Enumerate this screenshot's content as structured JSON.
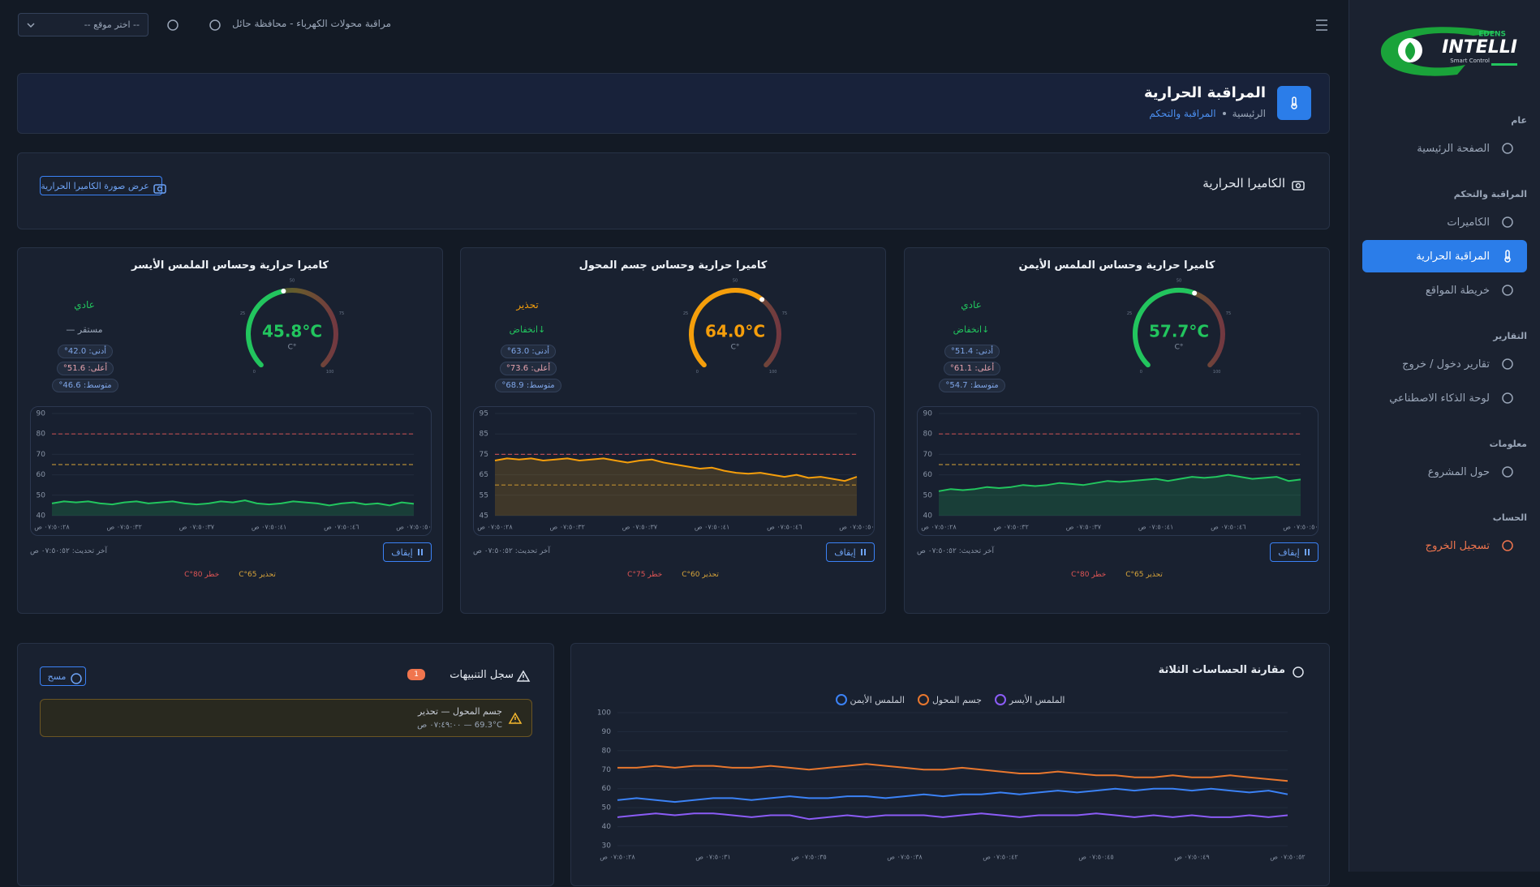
{
  "sidebar": {
    "logo": {
      "brand": "INTELLI",
      "sub": "EDENS",
      "tagline": "Smart Control"
    },
    "sections": [
      {
        "title": "عام",
        "items": [
          {
            "label": "الصفحة الرئيسية"
          }
        ]
      },
      {
        "title": "المراقبة والتحكم",
        "items": [
          {
            "label": "الكاميرات"
          },
          {
            "label": "المراقبة الحرارية",
            "active": true
          },
          {
            "label": "خريطة المواقع"
          }
        ]
      },
      {
        "title": "التقارير",
        "items": [
          {
            "label": "تقارير دخول / خروج"
          },
          {
            "label": "لوحة الذكاء الاصطناعي"
          }
        ]
      },
      {
        "title": "معلومات",
        "items": [
          {
            "label": "حول المشروع"
          }
        ]
      },
      {
        "title": "الحساب",
        "items": [
          {
            "label": "تسجيل الخروج",
            "danger": true
          }
        ]
      }
    ]
  },
  "topbar": {
    "title": "مراقبة محولات الكهرباء - محافظة حائل",
    "location_placeholder": "-- اختر موقع --"
  },
  "page_header": {
    "title": "المراقبة الحرارية",
    "breadcrumb": [
      "الرئيسية",
      "المراقبة والتحكم"
    ]
  },
  "camera": {
    "title": "الكاميرا الحرارية",
    "button": "عرض صورة الكاميرا الحرارية"
  },
  "sensors": [
    {
      "title": "كاميرا حرارية وحساس الملمس الأيمن",
      "status": "عادي",
      "status_color": "#22c55e",
      "trend": "↓انخفاض",
      "stats": [
        "أدنى: 51.4°",
        "أعلى: 61.1°",
        "متوسط: 54.7°"
      ],
      "gauge": {
        "type": "gauge",
        "lim": [
          0,
          100
        ],
        "ticks": [
          0,
          25,
          50,
          75,
          100
        ],
        "value": 57.7,
        "label": "57.7°C",
        "unit": "C°",
        "color": "#22c55e"
      },
      "chart_data": {
        "type": "line",
        "ylim": [
          40,
          90
        ],
        "yticks": [
          40,
          50,
          60,
          70,
          80,
          90
        ],
        "grid": true,
        "categories": [
          "٠٧:٥٠:٢٨ ص",
          null,
          null,
          null,
          null,
          null,
          "٠٧:٥٠:٣٢ ص",
          null,
          null,
          null,
          null,
          null,
          "٠٧:٥٠:٣٧ ص",
          null,
          null,
          null,
          null,
          null,
          "٠٧:٥٠:٤١ ص",
          null,
          null,
          null,
          null,
          null,
          "٠٧:٥٠:٤٦ ص",
          null,
          null,
          null,
          null,
          null,
          "٠٧:٥٠:٥٠ ص"
        ],
        "series": [
          {
            "color": "#22c55e",
            "values": [
              52,
              53,
              52.5,
              53,
              54,
              53.5,
              54,
              55,
              54.5,
              55,
              56,
              55.5,
              55,
              56,
              57,
              56.5,
              57,
              57.5,
              58,
              57,
              58,
              59,
              58.5,
              59,
              60,
              59,
              58,
              58.5,
              59,
              57,
              57.7
            ]
          }
        ],
        "thresholds": [
          {
            "value": 65,
            "label": "تحذير 65°C",
            "color": "#d9a53a"
          },
          {
            "value": 80,
            "label": "خطر 80°C",
            "color": "#e05555"
          }
        ]
      },
      "last_update": "آخر تحديث: ٠٧:٥٠:٥٢ ص",
      "stop_button": "إيقاف"
    },
    {
      "title": "كاميرا حرارية وحساس جسم المحول",
      "status": "تحذير",
      "status_color": "#f59e0b",
      "trend": "↓انخفاض",
      "stats": [
        "أدنى: 63.0°",
        "أعلى: 73.6°",
        "متوسط: 68.9°"
      ],
      "gauge": {
        "type": "gauge",
        "lim": [
          0,
          100
        ],
        "ticks": [
          0,
          25,
          50,
          75,
          100
        ],
        "value": 64.0,
        "label": "64.0°C",
        "unit": "C°",
        "color": "#f59e0b"
      },
      "chart_data": {
        "type": "line",
        "ylim": [
          45,
          95
        ],
        "yticks": [
          45,
          55,
          65,
          75,
          85,
          95
        ],
        "grid": true,
        "categories": [
          "٠٧:٥٠:٢٨ ص",
          null,
          null,
          null,
          null,
          null,
          "٠٧:٥٠:٣٢ ص",
          null,
          null,
          null,
          null,
          null,
          "٠٧:٥٠:٣٧ ص",
          null,
          null,
          null,
          null,
          null,
          "٠٧:٥٠:٤١ ص",
          null,
          null,
          null,
          null,
          null,
          "٠٧:٥٠:٤٦ ص",
          null,
          null,
          null,
          null,
          null,
          "٠٧:٥٠:٥٠ ص"
        ],
        "series": [
          {
            "color": "#f59e0b",
            "values": [
              72,
              73,
              72.5,
              73,
              72,
              72.5,
              73,
              72,
              72.5,
              73,
              72,
              71,
              72,
              72.5,
              71,
              70,
              69,
              68,
              68.5,
              67,
              66,
              65.5,
              66,
              65,
              64,
              65,
              63.5,
              64,
              63,
              62,
              64
            ]
          }
        ],
        "thresholds": [
          {
            "value": 60,
            "label": "تحذير 60°C",
            "color": "#d9a53a"
          },
          {
            "value": 75,
            "label": "خطر 75°C",
            "color": "#e05555"
          }
        ]
      },
      "last_update": "آخر تحديث: ٠٧:٥٠:٥٢ ص",
      "stop_button": "إيقاف"
    },
    {
      "title": "كاميرا حرارية وحساس الملمس الأيسر",
      "status": "عادي",
      "status_color": "#22c55e",
      "trend": "مستقر —",
      "stats": [
        "أدنى: 42.0°",
        "أعلى: 51.6°",
        "متوسط: 46.6°"
      ],
      "gauge": {
        "type": "gauge",
        "lim": [
          0,
          100
        ],
        "ticks": [
          0,
          25,
          50,
          75,
          100
        ],
        "value": 45.8,
        "label": "45.8°C",
        "unit": "C°",
        "color": "#22c55e"
      },
      "chart_data": {
        "type": "line",
        "ylim": [
          40,
          90
        ],
        "yticks": [
          40,
          50,
          60,
          70,
          80,
          90
        ],
        "grid": true,
        "categories": [
          "٠٧:٥٠:٢٨ ص",
          null,
          null,
          null,
          null,
          null,
          "٠٧:٥٠:٣٢ ص",
          null,
          null,
          null,
          null,
          null,
          "٠٧:٥٠:٣٧ ص",
          null,
          null,
          null,
          null,
          null,
          "٠٧:٥٠:٤١ ص",
          null,
          null,
          null,
          null,
          null,
          "٠٧:٥٠:٤٦ ص",
          null,
          null,
          null,
          null,
          null,
          "٠٧:٥٠:٥٠ ص"
        ],
        "series": [
          {
            "color": "#22c55e",
            "values": [
              46,
              47,
              46.5,
              47,
              46,
              45.5,
              46.5,
              47,
              46,
              46.5,
              47,
              46,
              45.5,
              46,
              47,
              46.5,
              47.5,
              46,
              45.5,
              46,
              47,
              46.5,
              46,
              45,
              46,
              46.5,
              45.5,
              46,
              45,
              46.5,
              45.8
            ]
          }
        ],
        "thresholds": [
          {
            "value": 65,
            "label": "تحذير 65°C",
            "color": "#d9a53a"
          },
          {
            "value": 80,
            "label": "خطر 80°C",
            "color": "#e05555"
          }
        ]
      },
      "last_update": "آخر تحديث: ٠٧:٥٠:٥٢ ص",
      "stop_button": "إيقاف"
    }
  ],
  "alerts": {
    "title": "سجل التنبيهات",
    "count": "1",
    "clear_button": "مسح",
    "items": [
      {
        "title": "جسم المحول — تحذير",
        "detail": "69.3°C — ٠٧:٤٩:٠٠ ص"
      }
    ]
  },
  "comparison": {
    "title": "مقارنة الحساسات الثلاثة",
    "chart_data": {
      "type": "line",
      "ylim": [
        30,
        100
      ],
      "yticks": [
        30,
        40,
        50,
        60,
        70,
        80,
        90,
        100
      ],
      "grid": true,
      "categories": [
        "٠٧:٥٠:٢٨ ص",
        null,
        null,
        null,
        null,
        "٠٧:٥٠:٣١ ص",
        null,
        null,
        null,
        null,
        "٠٧:٥٠:٣٥ ص",
        null,
        null,
        null,
        null,
        "٠٧:٥٠:٣٨ ص",
        null,
        null,
        null,
        null,
        "٠٧:٥٠:٤٢ ص",
        null,
        null,
        null,
        null,
        "٠٧:٥٠:٤٥ ص",
        null,
        null,
        null,
        null,
        "٠٧:٥٠:٤٩ ص",
        null,
        null,
        null,
        null,
        "٠٧:٥٠:٥٢ ص"
      ],
      "series": [
        {
          "name": "الملمس الأيمن",
          "color": "#3b82f6",
          "values": [
            54,
            55,
            54,
            53,
            54,
            55,
            55,
            54,
            55,
            56,
            55,
            55,
            56,
            56,
            55,
            56,
            57,
            56,
            57,
            57,
            58,
            57,
            58,
            59,
            58,
            59,
            60,
            59,
            60,
            60,
            59,
            60,
            59,
            58,
            59,
            57
          ]
        },
        {
          "name": "جسم المحول",
          "color": "#e8772e",
          "values": [
            71,
            71,
            72,
            71,
            72,
            72,
            71,
            71,
            72,
            71,
            70,
            71,
            72,
            73,
            72,
            71,
            70,
            70,
            71,
            70,
            69,
            68,
            68,
            69,
            68,
            67,
            67,
            66,
            66,
            67,
            66,
            66,
            67,
            66,
            65,
            64
          ]
        },
        {
          "name": "الملمس الأيسر",
          "color": "#8b5cf6",
          "values": [
            45,
            46,
            47,
            46,
            47,
            47,
            46,
            45,
            46,
            46,
            44,
            45,
            46,
            45,
            46,
            46,
            46,
            45,
            46,
            47,
            46,
            45,
            46,
            46,
            46,
            47,
            46,
            45,
            46,
            45,
            46,
            45,
            45,
            46,
            45,
            46
          ]
        }
      ]
    }
  }
}
